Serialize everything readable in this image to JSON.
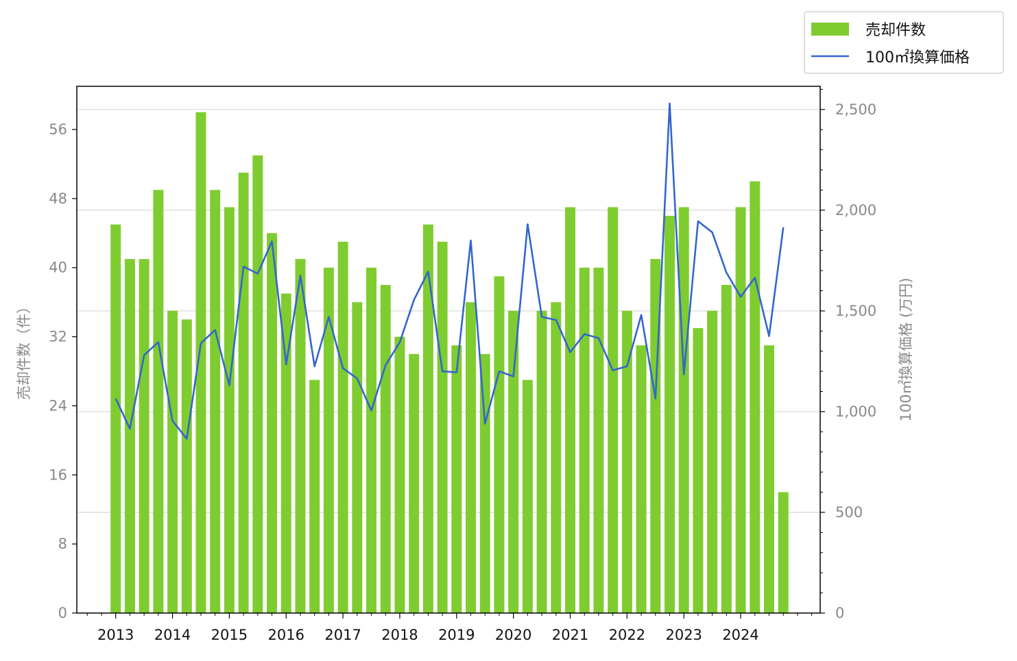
{
  "chart_data": {
    "type": "bar+line",
    "legend": {
      "placement": "top-right, outside plot",
      "entries": [
        {
          "label": "売却件数",
          "color": "#7fcc30",
          "kind": "bar"
        },
        {
          "label": "100㎡換算価格",
          "color": "#3366cc",
          "kind": "line"
        }
      ]
    },
    "y_left": {
      "label": "売却件数（件）",
      "ticks": [
        "0",
        "8",
        "16",
        "24",
        "32",
        "40",
        "48",
        "56"
      ],
      "range": [
        0,
        61
      ]
    },
    "y_right": {
      "label": "100㎡換算価格 (万円)",
      "ticks": [
        "0",
        "500",
        "1,000",
        "1,500",
        "2,000",
        "2,500"
      ],
      "range": [
        0,
        2615
      ]
    },
    "x_ticks": [
      "2013",
      "2014",
      "2015",
      "2016",
      "2017",
      "2018",
      "2019",
      "2020",
      "2021",
      "2022",
      "2023",
      "2024"
    ],
    "grid": "horizontal, right axis",
    "colors": {
      "bar": "#7fcc30",
      "line": "#3366cc",
      "grid": "#d8d8d8"
    },
    "series": [
      {
        "name": "売却件数",
        "x": [
          2013.0,
          2013.25,
          2013.5,
          2013.75,
          2014.0,
          2014.25,
          2014.5,
          2014.75,
          2015.0,
          2015.25,
          2015.5,
          2015.75,
          2016.0,
          2016.25,
          2016.5,
          2016.75,
          2017.0,
          2017.25,
          2017.5,
          2017.75,
          2018.0,
          2018.25,
          2018.5,
          2018.75,
          2019.0,
          2019.25,
          2019.5,
          2019.75,
          2020.0,
          2020.25,
          2020.5,
          2020.75,
          2021.0,
          2021.25,
          2021.5,
          2021.75,
          2022.0,
          2022.25,
          2022.5,
          2022.75,
          2023.0,
          2023.25,
          2023.5,
          2023.75,
          2024.0,
          2024.25,
          2024.5,
          2024.75
        ],
        "values": [
          45,
          41,
          41,
          49,
          35,
          34,
          58,
          49,
          47,
          51,
          53,
          44,
          37,
          41,
          27,
          40,
          43,
          36,
          40,
          38,
          32,
          30,
          45,
          43,
          31,
          36,
          30,
          39,
          35,
          27,
          35,
          36,
          47,
          40,
          40,
          47,
          35,
          31,
          41,
          46,
          47,
          33,
          35,
          38,
          47,
          50,
          31,
          14
        ]
      },
      {
        "name": "100㎡換算価格",
        "x": [
          2013.0,
          2013.25,
          2013.5,
          2013.75,
          2014.0,
          2014.25,
          2014.5,
          2014.75,
          2015.0,
          2015.25,
          2015.5,
          2015.75,
          2016.0,
          2016.25,
          2016.5,
          2016.75,
          2017.0,
          2017.25,
          2017.5,
          2017.75,
          2018.0,
          2018.25,
          2018.5,
          2018.75,
          2019.0,
          2019.25,
          2019.5,
          2019.75,
          2020.0,
          2020.25,
          2020.5,
          2020.75,
          2021.0,
          2021.25,
          2021.5,
          2021.75,
          2022.0,
          2022.25,
          2022.5,
          2022.75,
          2023.0,
          2023.25,
          2023.5,
          2023.75,
          2024.0,
          2024.25,
          2024.5,
          2024.75
        ],
        "values": [
          1065,
          915,
          1280,
          1345,
          955,
          865,
          1340,
          1405,
          1130,
          1720,
          1685,
          1845,
          1235,
          1675,
          1225,
          1470,
          1215,
          1165,
          1005,
          1230,
          1345,
          1555,
          1695,
          1200,
          1195,
          1850,
          940,
          1200,
          1175,
          1930,
          1470,
          1455,
          1295,
          1385,
          1365,
          1205,
          1225,
          1480,
          1065,
          2530,
          1185,
          1945,
          1890,
          1690,
          1570,
          1665,
          1375,
          1915
        ]
      }
    ]
  }
}
